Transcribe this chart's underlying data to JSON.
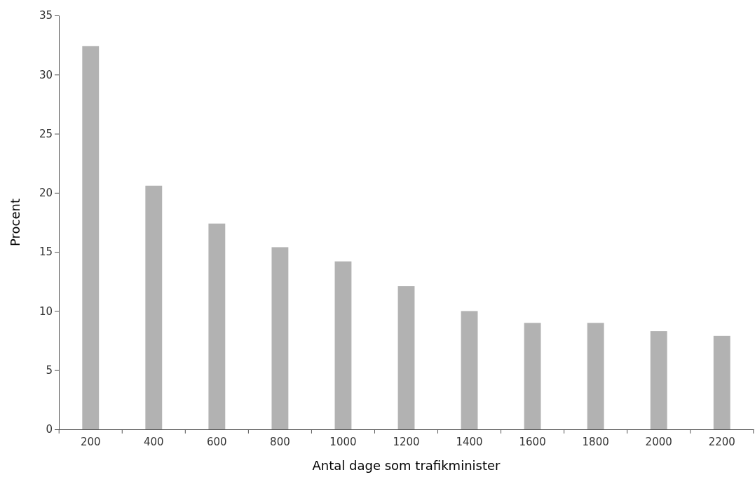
{
  "chart_data": {
    "type": "bar",
    "xlabel": "Antal dage som trafikminister",
    "ylabel": "Procent",
    "categories": [
      "200",
      "400",
      "600",
      "800",
      "1000",
      "1200",
      "1400",
      "1600",
      "1800",
      "2000",
      "2200"
    ],
    "values": [
      32.4,
      20.6,
      17.4,
      15.4,
      14.2,
      12.1,
      10.0,
      9.0,
      9.0,
      8.3,
      7.9
    ],
    "color": "#b2b2b2",
    "ylim": [
      0,
      35
    ],
    "yticks": [
      0,
      5,
      10,
      15,
      20,
      25,
      30,
      35
    ],
    "grid": false
  }
}
